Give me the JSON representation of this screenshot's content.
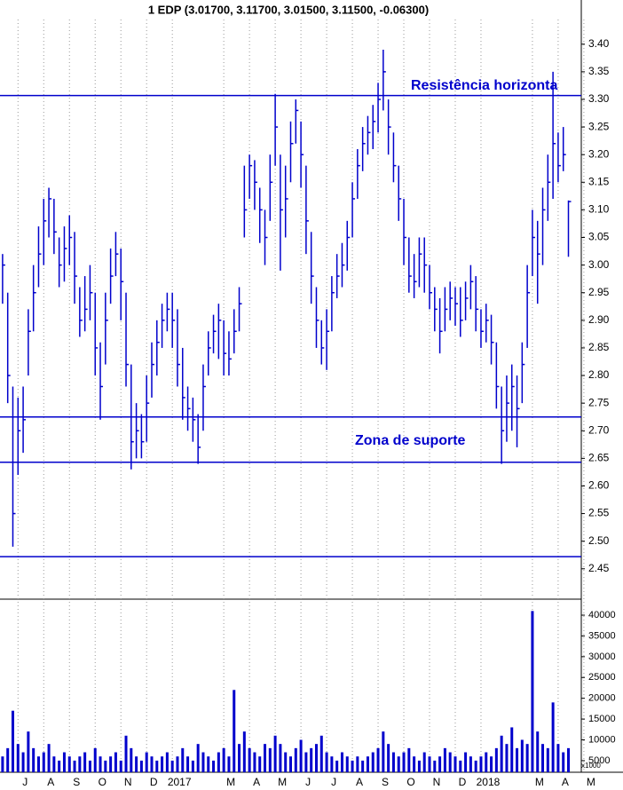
{
  "chart_data": {
    "type": "ohlc_volume",
    "title": "1 EDP (3.01700, 3.11700, 3.01500, 3.11500, -0.06300)",
    "color": "#0000cc",
    "xlim": [
      0.3,
      22.9
    ],
    "xticks": [
      {
        "value": 1,
        "label": "J"
      },
      {
        "value": 2,
        "label": "A"
      },
      {
        "value": 3,
        "label": "S"
      },
      {
        "value": 4,
        "label": "O"
      },
      {
        "value": 5,
        "label": "N"
      },
      {
        "value": 6,
        "label": "D"
      },
      {
        "value": 7,
        "label": "2017"
      },
      {
        "value": 9,
        "label": "M"
      },
      {
        "value": 10,
        "label": "A"
      },
      {
        "value": 11,
        "label": "M"
      },
      {
        "value": 12,
        "label": "J"
      },
      {
        "value": 13,
        "label": "J"
      },
      {
        "value": 14,
        "label": "A"
      },
      {
        "value": 15,
        "label": "S"
      },
      {
        "value": 16,
        "label": "O"
      },
      {
        "value": 17,
        "label": "N"
      },
      {
        "value": 18,
        "label": "D"
      },
      {
        "value": 19,
        "label": "2018"
      },
      {
        "value": 21,
        "label": "M"
      },
      {
        "value": 22,
        "label": "A"
      },
      {
        "value": 23,
        "label": "M"
      }
    ],
    "ylim": [
      2.395,
      3.48
    ],
    "yticks": [
      2.45,
      {
        "value": 2.5,
        "label": "2.50"
      },
      2.55,
      {
        "value": 2.6,
        "label": "2.60"
      },
      2.65,
      {
        "value": 2.7,
        "label": "2.70"
      },
      2.75,
      {
        "value": 2.8,
        "label": "2.80"
      },
      2.85,
      {
        "value": 2.9,
        "label": "2.90"
      },
      2.95,
      {
        "value": 3.0,
        "label": "3.00"
      },
      3.05,
      {
        "value": 3.1,
        "label": "3.10"
      },
      3.15,
      {
        "value": 3.2,
        "label": "3.20"
      },
      3.25,
      {
        "value": 3.3,
        "label": "3.30"
      },
      3.35,
      {
        "value": 3.4,
        "label": "3.40"
      }
    ],
    "volume_ylim": [
      2200,
      43850
    ],
    "volume_yticks": [
      5000,
      10000,
      15000,
      20000,
      25000,
      30000,
      35000,
      40000
    ],
    "volume_unit_label": "x1000",
    "hlines": [
      3.307,
      2.725,
      2.643,
      2.472
    ],
    "annotations": [
      {
        "text": "Resistência horizonta"
      },
      {
        "text": "Zona de suporte"
      }
    ],
    "x": [
      0.4,
      0.6,
      0.8,
      1.0,
      1.2,
      1.4,
      1.6,
      1.8,
      2.0,
      2.2,
      2.4,
      2.6,
      2.8,
      3.0,
      3.2,
      3.4,
      3.6,
      3.8,
      4.0,
      4.2,
      4.4,
      4.6,
      4.8,
      5.0,
      5.2,
      5.4,
      5.6,
      5.8,
      6.0,
      6.2,
      6.4,
      6.6,
      6.8,
      7.0,
      7.2,
      7.4,
      7.6,
      7.8,
      8.0,
      8.2,
      8.4,
      8.6,
      8.8,
      9.0,
      9.2,
      9.4,
      9.6,
      9.8,
      10.0,
      10.2,
      10.4,
      10.6,
      10.8,
      11.0,
      11.2,
      11.4,
      11.6,
      11.8,
      12.0,
      12.2,
      12.4,
      12.6,
      12.8,
      13.0,
      13.2,
      13.4,
      13.6,
      13.8,
      14.0,
      14.2,
      14.4,
      14.6,
      14.8,
      15.0,
      15.2,
      15.4,
      15.6,
      15.8,
      16.0,
      16.2,
      16.4,
      16.6,
      16.8,
      17.0,
      17.2,
      17.4,
      17.6,
      17.8,
      18.0,
      18.2,
      18.4,
      18.6,
      18.8,
      19.0,
      19.2,
      19.4,
      19.6,
      19.8,
      20.0,
      20.2,
      20.4,
      20.6,
      20.8,
      21.0,
      21.2,
      21.4,
      21.6,
      21.8,
      22.0,
      22.2,
      22.4
    ],
    "high": [
      3.02,
      2.95,
      2.78,
      2.76,
      2.78,
      2.92,
      3.0,
      3.07,
      3.12,
      3.14,
      3.12,
      3.05,
      3.07,
      3.09,
      3.06,
      2.96,
      2.98,
      3.0,
      2.95,
      2.86,
      2.95,
      3.03,
      3.06,
      3.03,
      2.95,
      2.82,
      2.75,
      2.73,
      2.8,
      2.86,
      2.9,
      2.93,
      2.95,
      2.95,
      2.92,
      2.85,
      2.78,
      2.76,
      2.73,
      2.82,
      2.88,
      2.91,
      2.93,
      2.9,
      2.88,
      2.92,
      2.96,
      3.18,
      3.2,
      3.19,
      3.14,
      3.1,
      3.2,
      3.31,
      3.2,
      3.18,
      3.26,
      3.3,
      3.26,
      3.18,
      3.06,
      2.96,
      2.9,
      2.92,
      2.98,
      3.02,
      3.04,
      3.08,
      3.15,
      3.21,
      3.25,
      3.27,
      3.29,
      3.33,
      3.39,
      3.3,
      3.24,
      3.18,
      3.12,
      3.05,
      3.02,
      3.05,
      3.05,
      3.0,
      2.96,
      2.94,
      2.96,
      2.97,
      2.96,
      2.96,
      2.97,
      3.0,
      2.98,
      2.92,
      2.93,
      2.91,
      2.86,
      2.78,
      2.8,
      2.82,
      2.8,
      2.86,
      3.0,
      3.1,
      3.08,
      3.14,
      3.2,
      3.35,
      3.24,
      3.25,
      3.117
    ],
    "low": [
      2.93,
      2.75,
      2.49,
      2.62,
      2.66,
      2.8,
      2.88,
      2.96,
      3.0,
      3.05,
      3.02,
      2.96,
      2.97,
      3.0,
      2.93,
      2.87,
      2.88,
      2.9,
      2.8,
      2.72,
      2.82,
      2.93,
      2.98,
      2.9,
      2.78,
      2.63,
      2.65,
      2.65,
      2.68,
      2.76,
      2.8,
      2.85,
      2.88,
      2.85,
      2.78,
      2.72,
      2.7,
      2.68,
      2.64,
      2.7,
      2.8,
      2.84,
      2.83,
      2.8,
      2.8,
      2.84,
      2.88,
      3.05,
      3.12,
      3.1,
      3.04,
      3.0,
      3.08,
      3.18,
      2.99,
      3.05,
      3.15,
      3.22,
      3.14,
      3.02,
      2.93,
      2.85,
      2.82,
      2.81,
      2.88,
      2.94,
      2.96,
      2.99,
      3.05,
      3.12,
      3.17,
      3.2,
      3.21,
      3.24,
      3.28,
      3.2,
      3.15,
      3.08,
      3.0,
      2.95,
      2.94,
      2.96,
      2.95,
      2.92,
      2.88,
      2.84,
      2.88,
      2.9,
      2.89,
      2.87,
      2.9,
      2.92,
      2.88,
      2.85,
      2.86,
      2.82,
      2.74,
      2.64,
      2.68,
      2.7,
      2.67,
      2.75,
      2.85,
      2.98,
      2.93,
      3.0,
      3.08,
      3.12,
      3.15,
      3.17,
      3.015
    ],
    "close": [
      3.0,
      2.8,
      2.55,
      2.7,
      2.72,
      2.88,
      2.95,
      3.02,
      3.08,
      3.12,
      3.06,
      3.0,
      3.03,
      3.05,
      2.98,
      2.9,
      2.92,
      2.95,
      2.85,
      2.78,
      2.9,
      2.98,
      3.02,
      2.97,
      2.82,
      2.68,
      2.7,
      2.68,
      2.75,
      2.82,
      2.86,
      2.9,
      2.92,
      2.9,
      2.82,
      2.76,
      2.74,
      2.72,
      2.67,
      2.78,
      2.85,
      2.88,
      2.9,
      2.84,
      2.83,
      2.88,
      2.93,
      3.1,
      3.18,
      3.15,
      3.1,
      3.05,
      3.15,
      3.25,
      3.1,
      3.12,
      3.22,
      3.28,
      3.2,
      3.08,
      2.98,
      2.9,
      2.85,
      2.88,
      2.95,
      2.98,
      3.0,
      3.05,
      3.12,
      3.18,
      3.22,
      3.24,
      3.26,
      3.3,
      3.35,
      3.25,
      3.18,
      3.12,
      3.05,
      2.98,
      2.97,
      3.02,
      3.0,
      2.95,
      2.92,
      2.88,
      2.92,
      2.94,
      2.93,
      2.9,
      2.94,
      2.97,
      2.92,
      2.88,
      2.9,
      2.86,
      2.78,
      2.7,
      2.75,
      2.78,
      2.74,
      2.82,
      2.95,
      3.05,
      3.02,
      3.1,
      3.15,
      3.22,
      3.18,
      3.2,
      3.115
    ],
    "volume": [
      6000,
      8000,
      17000,
      9000,
      7000,
      12000,
      8000,
      6000,
      7000,
      9000,
      6000,
      5000,
      7000,
      6000,
      5000,
      6000,
      7000,
      5000,
      8000,
      6000,
      5000,
      6000,
      7000,
      5000,
      11000,
      8000,
      6000,
      5000,
      7000,
      6000,
      5000,
      6000,
      7000,
      5000,
      6000,
      8000,
      6000,
      5000,
      9000,
      7000,
      6000,
      5000,
      7000,
      8000,
      6000,
      22000,
      9000,
      12000,
      8000,
      7000,
      6000,
      9000,
      8000,
      11000,
      9000,
      7000,
      6000,
      8000,
      10000,
      7000,
      8000,
      9000,
      11000,
      7000,
      6000,
      5000,
      7000,
      6000,
      5000,
      6000,
      5000,
      6000,
      7000,
      8000,
      12000,
      9000,
      7000,
      6000,
      7000,
      8000,
      6000,
      5000,
      7000,
      6000,
      5000,
      6000,
      8000,
      7000,
      6000,
      5000,
      7000,
      6000,
      5000,
      6000,
      7000,
      6000,
      8000,
      11000,
      9000,
      13000,
      8000,
      10000,
      9000,
      41000,
      12000,
      9000,
      8000,
      19000,
      9000,
      7000,
      8000
    ]
  }
}
